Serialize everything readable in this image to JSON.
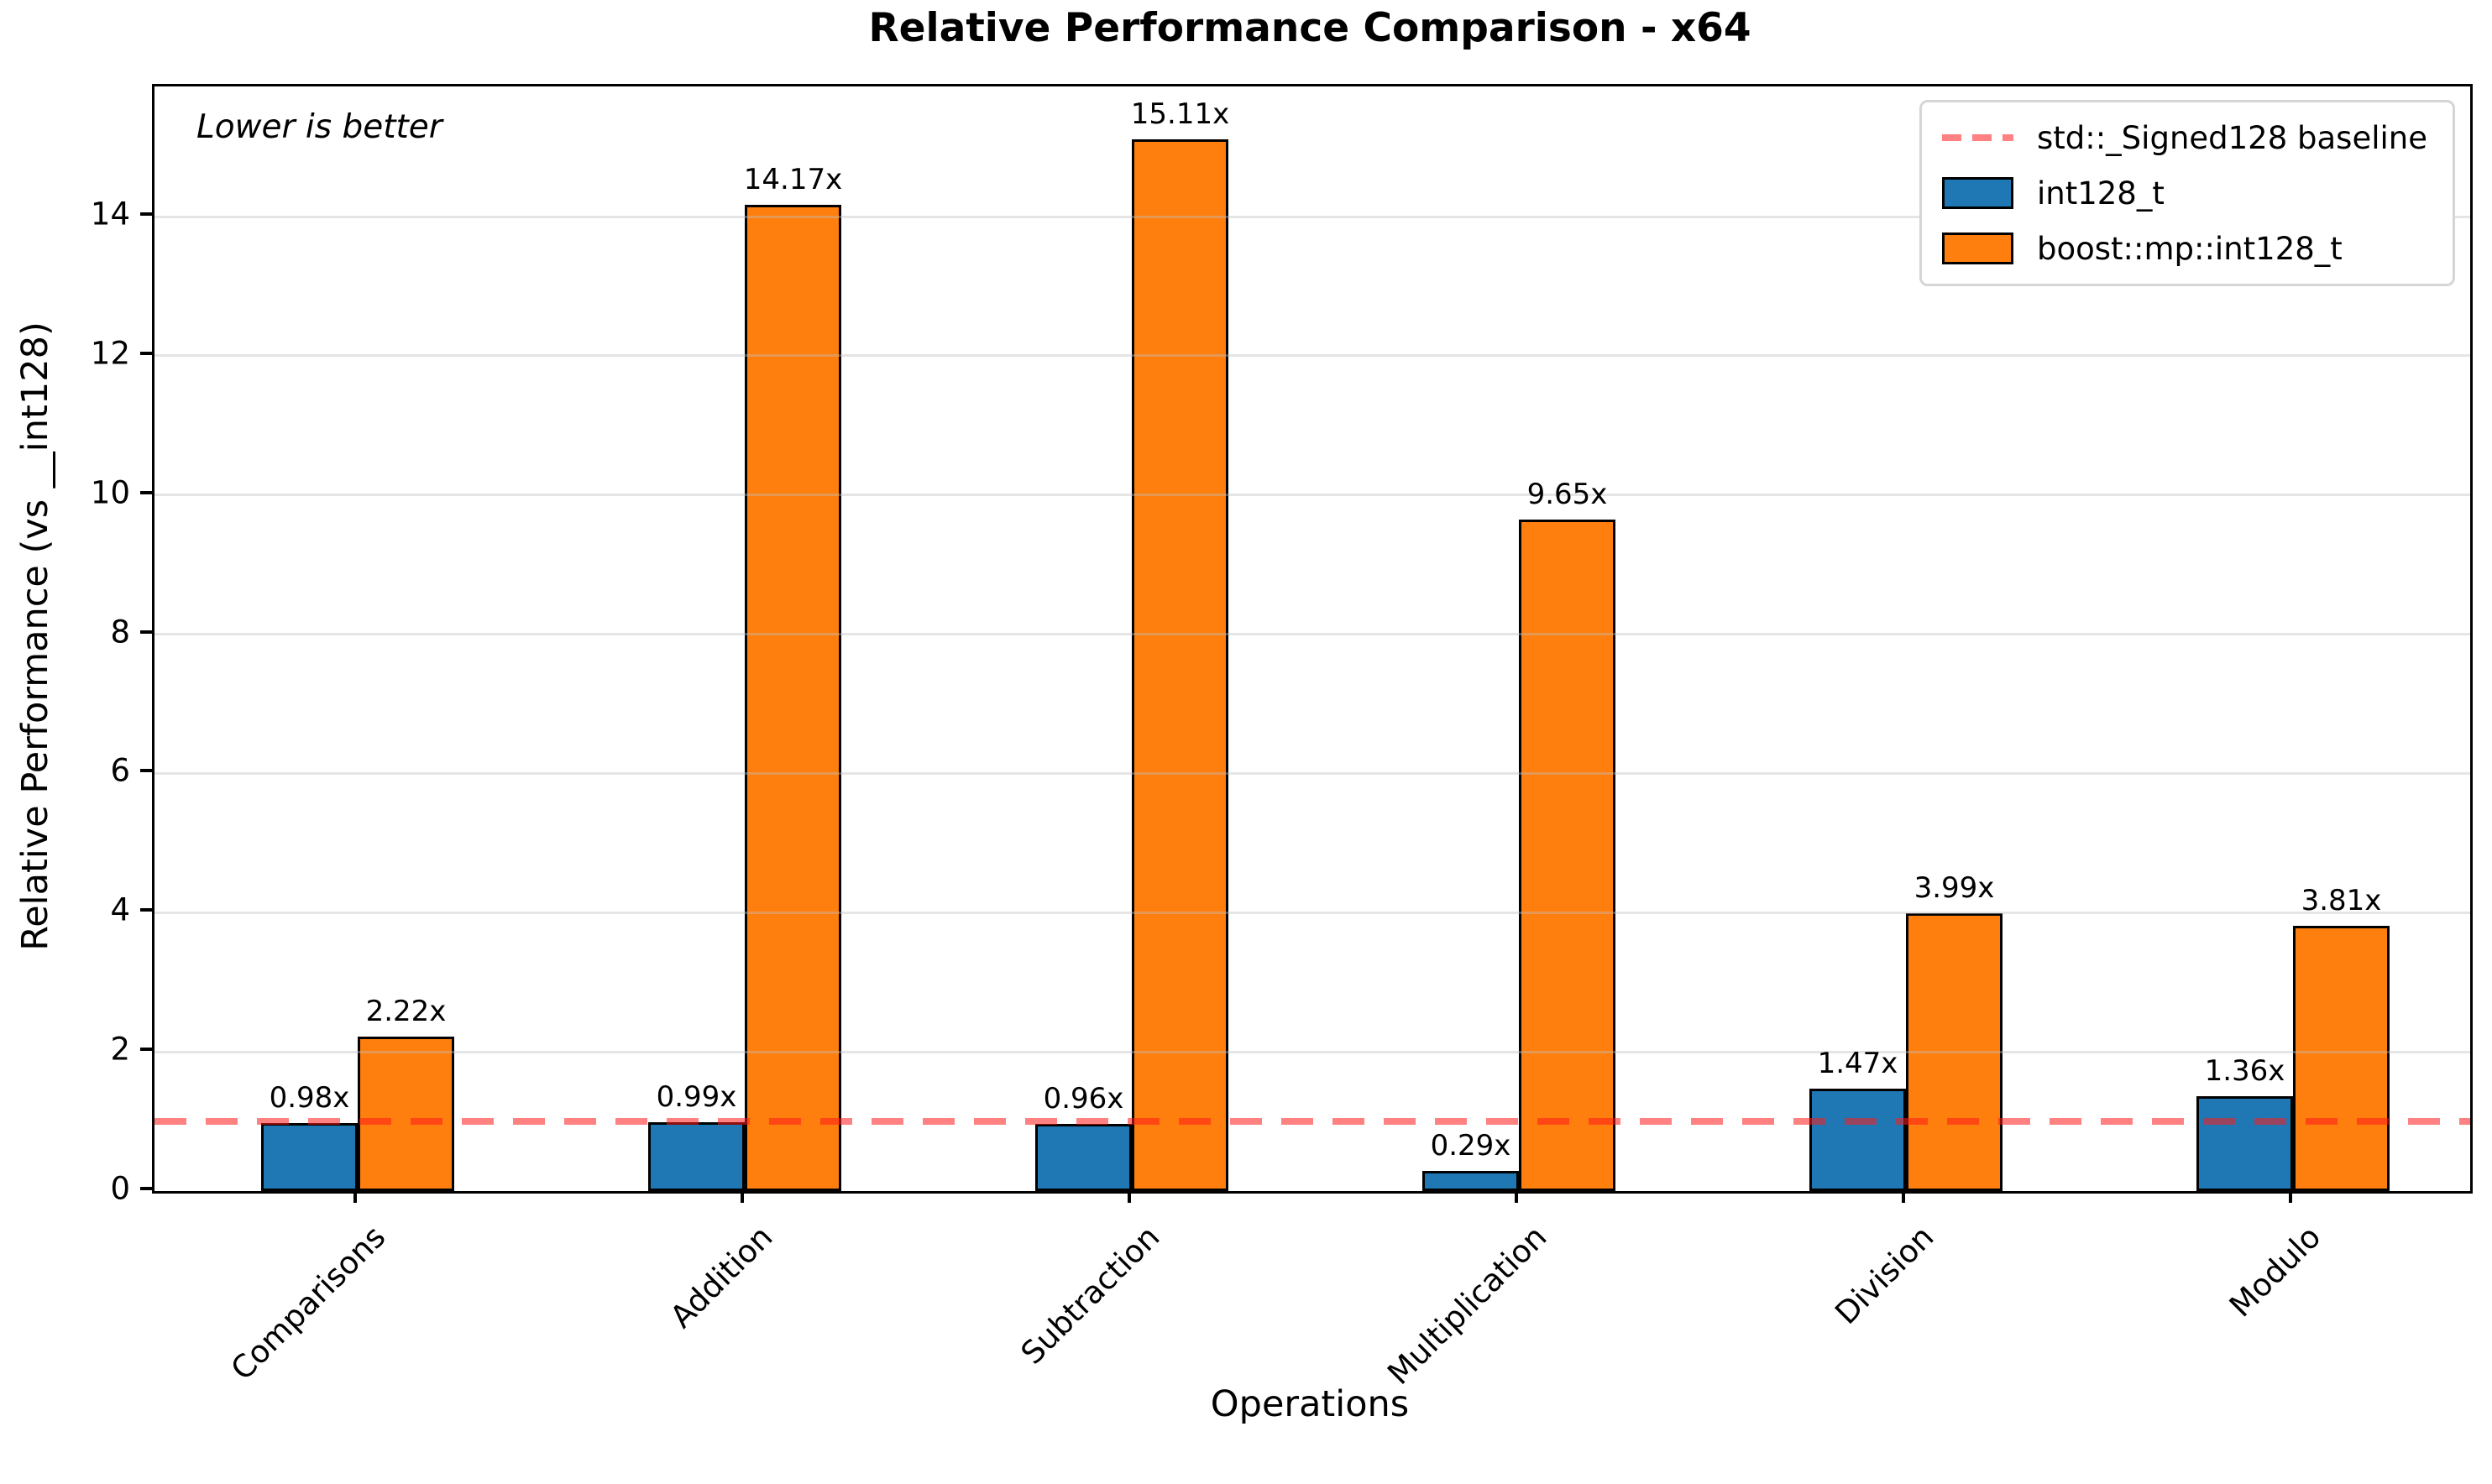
{
  "chart_data": {
    "type": "bar",
    "title": "Relative Performance Comparison - x64",
    "xlabel": "Operations",
    "ylabel": "Relative Performance (vs __int128)",
    "annotation": "Lower is better",
    "categories": [
      "Comparisons",
      "Addition",
      "Subtraction",
      "Multiplication",
      "Division",
      "Modulo"
    ],
    "series": [
      {
        "name": "int128_t",
        "color": "#1f77b4",
        "values": [
          0.98,
          0.99,
          0.96,
          0.29,
          1.47,
          1.36
        ],
        "bar_labels": [
          "0.98x",
          "0.99x",
          "0.96x",
          "0.29x",
          "1.47x",
          "1.36x"
        ]
      },
      {
        "name": "boost::mp::int128_t",
        "color": "#ff7f0e",
        "values": [
          2.22,
          14.17,
          15.11,
          9.65,
          3.99,
          3.81
        ],
        "bar_labels": [
          "2.22x",
          "14.17x",
          "15.11x",
          "9.65x",
          "3.99x",
          "3.81x"
        ]
      }
    ],
    "baseline": {
      "label": "std::_Signed128 baseline",
      "value": 1.0,
      "color": "#ff4c4c",
      "style": "dashed"
    },
    "ylim": [
      0,
      15.87
    ],
    "yticks": [
      0,
      2,
      4,
      6,
      8,
      10,
      12,
      14
    ],
    "grid": true,
    "legend_position": "upper right"
  }
}
